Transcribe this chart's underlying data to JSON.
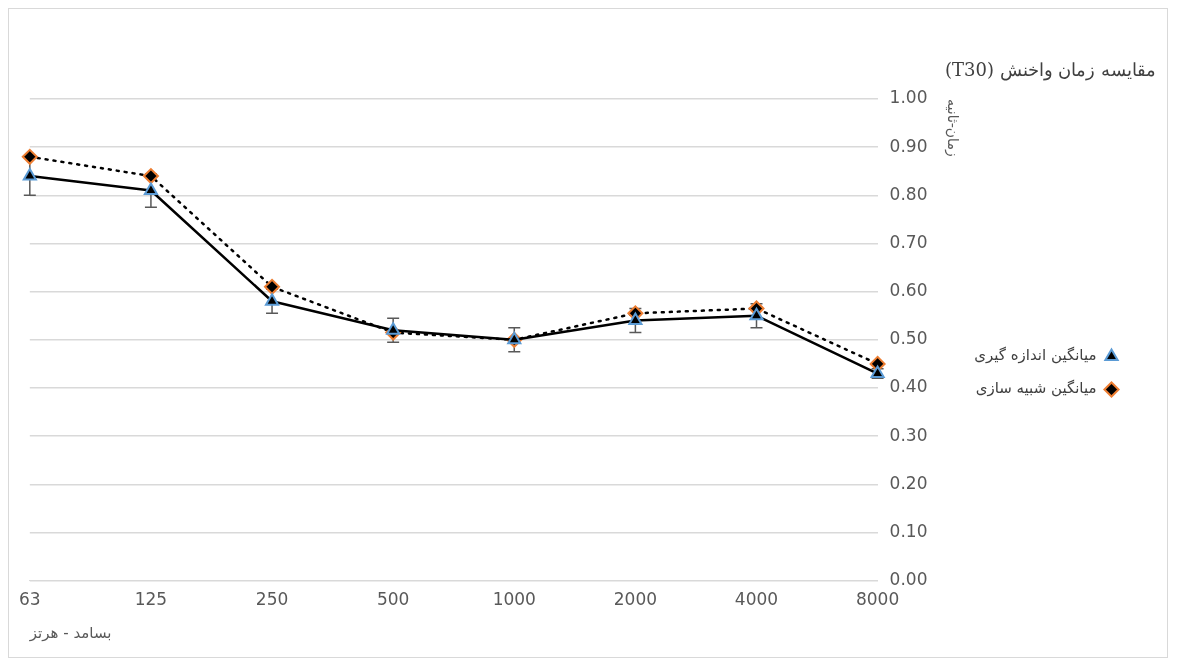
{
  "chart_data": {
    "type": "line",
    "legend_title": "مقایسه زمان واخنش (T30)",
    "xlabel": "بسامد - هرتز",
    "ylabel": "زمان-ثانیه",
    "categories": [
      "63",
      "125",
      "250",
      "500",
      "1000",
      "2000",
      "4000",
      "8000"
    ],
    "series": [
      {
        "name": "میانگین اندازه گیری",
        "color": "#000000",
        "colors": [
          "#5b9bd5",
          "#5b9bd5",
          "#5b9bd5",
          "#5b9bd5",
          "#5b9bd5",
          "#5b9bd5",
          "#5b9bd5",
          "#5b9bd5"
        ],
        "marker": "triangle",
        "line_style": "solid",
        "values": [
          0.84,
          0.81,
          0.58,
          0.52,
          0.5,
          0.54,
          0.55,
          0.43
        ],
        "errors": [
          0.04,
          0.035,
          0.025,
          0.025,
          0.025,
          0.025,
          0.025,
          0.01
        ]
      },
      {
        "name": "میانگین شبیه سازی",
        "color": "#000000",
        "colors": [
          "#ed7d31",
          "#ed7d31",
          "#ed7d31",
          "#ed7d31",
          "#ed7d31",
          "#ed7d31",
          "#ed7d31",
          "#ed7d31"
        ],
        "marker": "diamond",
        "line_style": "dotted",
        "values": [
          0.88,
          0.84,
          0.61,
          0.515,
          0.5,
          0.555,
          0.565,
          0.45
        ]
      }
    ],
    "ylim": [
      0,
      1
    ],
    "yticks": [
      {
        "value": 0,
        "label": "0.00"
      },
      {
        "value": 0.1,
        "label": "0.10"
      },
      {
        "value": 0.2,
        "label": "0.20"
      },
      {
        "value": 0.3,
        "label": "0.30"
      },
      {
        "value": 0.4,
        "label": "0.40"
      },
      {
        "value": 0.5,
        "label": "0.50"
      },
      {
        "value": 0.6,
        "label": "0.60"
      },
      {
        "value": 0.7,
        "label": "0.70"
      },
      {
        "value": 0.8,
        "label": "0.80"
      },
      {
        "value": 0.9,
        "label": "0.90"
      },
      {
        "value": 1,
        "label": "1.00"
      }
    ],
    "grid": "y",
    "legend": "right"
  }
}
